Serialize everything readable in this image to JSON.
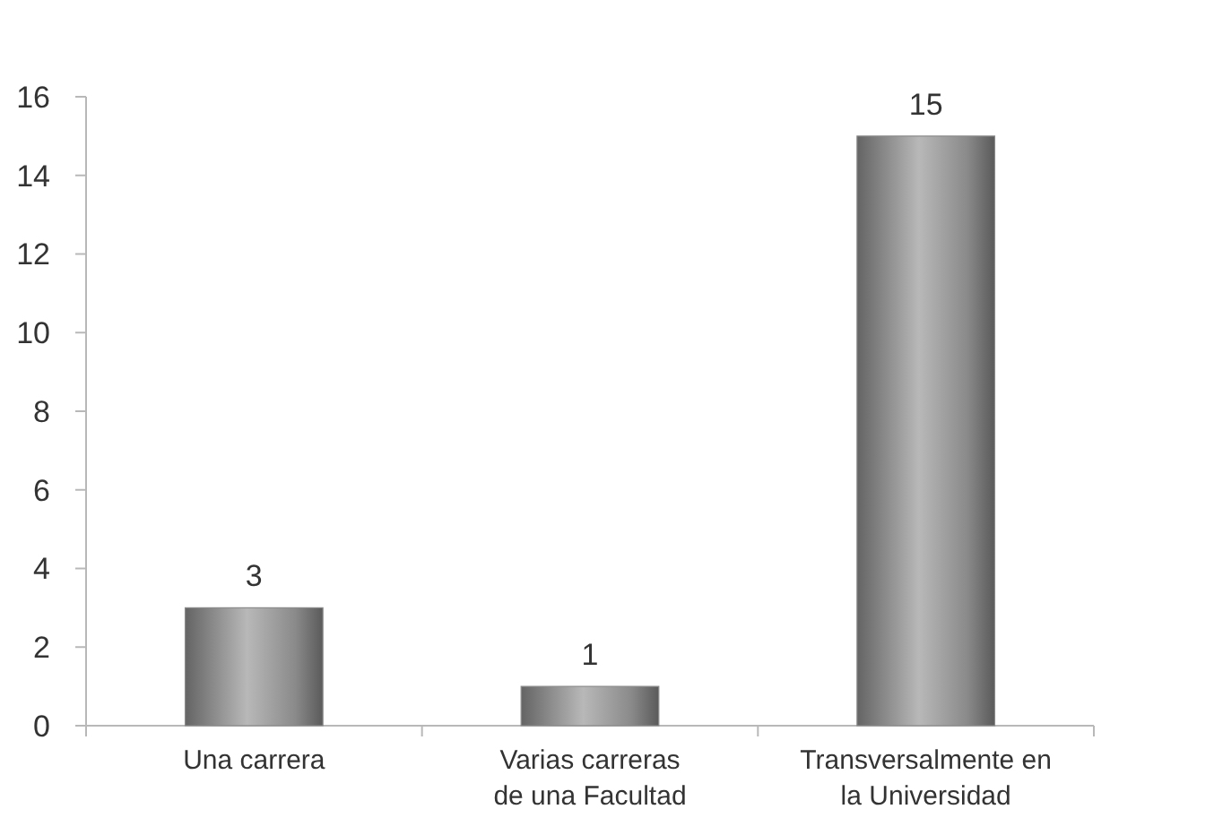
{
  "chart_data": {
    "type": "bar",
    "categories": [
      "Una carrera",
      "Varias carreras\nde una Facultad",
      "Transversalmente en\nla Universidad"
    ],
    "values": [
      3,
      1,
      15
    ],
    "color": "#8a8a8a",
    "ylim": [
      0,
      16
    ],
    "yticks": [
      0,
      2,
      4,
      6,
      8,
      10,
      12,
      14,
      16
    ],
    "data_labels": true
  }
}
